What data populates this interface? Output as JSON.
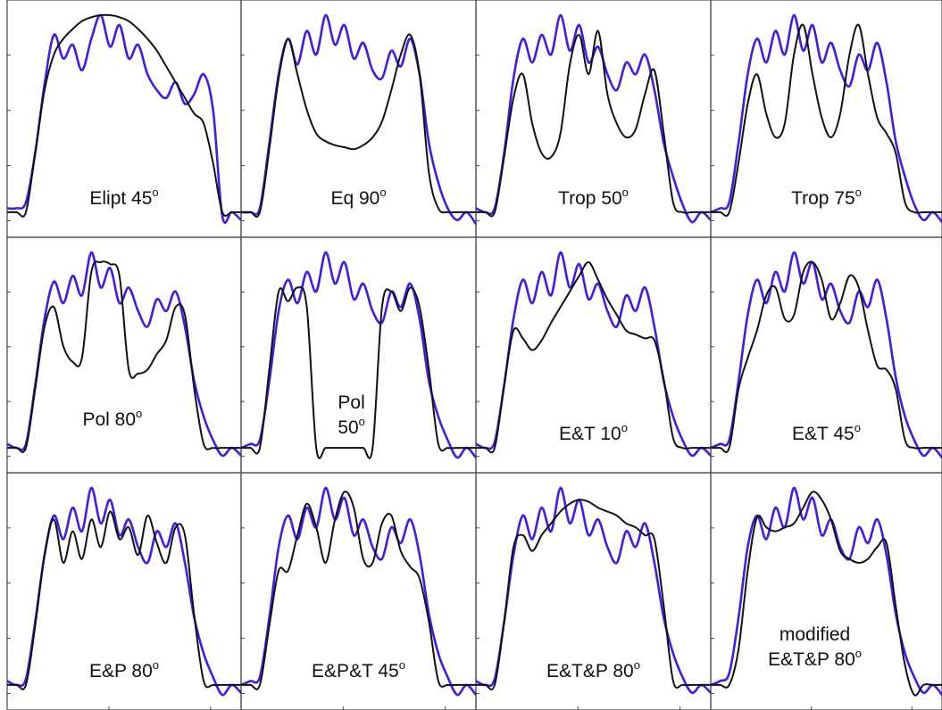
{
  "chart_data": [
    {
      "type": "line",
      "label_lines": [
        "Elipt 45",
        "o"
      ],
      "label_parts": {
        "main": "Elipt 45",
        "sup": "o"
      },
      "series": [
        {
          "color": "#3a1fe6",
          "values": [
            0.02,
            0.02,
            0.05,
            0.3,
            0.65,
            0.9,
            0.78,
            0.85,
            0.72,
            0.88,
            1.0,
            0.84,
            0.95,
            0.78,
            0.85,
            0.7,
            0.62,
            0.58,
            0.66,
            0.55,
            0.6,
            0.7,
            0.52,
            -0.02,
            0.0,
            -0.04
          ]
        },
        {
          "color": "#111111",
          "values": [
            0.0,
            0.0,
            0.0,
            0.3,
            0.62,
            0.8,
            0.88,
            0.93,
            0.97,
            0.99,
            1.0,
            1.0,
            0.99,
            0.97,
            0.93,
            0.88,
            0.82,
            0.74,
            0.66,
            0.58,
            0.5,
            0.45,
            0.25,
            0.0,
            0.0,
            0.0
          ]
        }
      ],
      "ylim": [
        -0.1,
        1.05
      ]
    },
    {
      "type": "line",
      "label_parts": {
        "main": "Eq 90",
        "sup": "o"
      },
      "series": [
        {
          "color": "#3a1fe6",
          "values": [
            0.0,
            0.0,
            0.02,
            0.35,
            0.7,
            0.88,
            0.75,
            0.92,
            0.8,
            1.0,
            0.85,
            0.95,
            0.78,
            0.86,
            0.72,
            0.68,
            0.82,
            0.74,
            0.88,
            0.7,
            0.35,
            0.15,
            0.02,
            -0.04,
            0.0,
            -0.06
          ]
        },
        {
          "color": "#111111",
          "values": [
            0.0,
            0.0,
            0.0,
            0.32,
            0.68,
            0.88,
            0.7,
            0.52,
            0.4,
            0.36,
            0.34,
            0.33,
            0.32,
            0.34,
            0.38,
            0.46,
            0.62,
            0.8,
            0.9,
            0.7,
            0.2,
            0.02,
            0.0,
            0.0,
            0.0,
            0.0
          ]
        }
      ],
      "ylim": [
        -0.1,
        1.05
      ]
    },
    {
      "type": "line",
      "label_parts": {
        "main": "Trop 50",
        "sup": "o"
      },
      "series": [
        {
          "color": "#3a1fe6",
          "values": [
            0.02,
            0.0,
            0.02,
            0.3,
            0.68,
            0.88,
            0.76,
            0.9,
            0.8,
            1.0,
            0.82,
            0.95,
            0.76,
            0.84,
            0.7,
            0.62,
            0.76,
            0.7,
            0.8,
            0.62,
            0.35,
            0.18,
            0.04,
            -0.05,
            0.0,
            -0.04
          ]
        },
        {
          "color": "#111111",
          "values": [
            0.0,
            0.0,
            0.0,
            0.28,
            0.58,
            0.7,
            0.45,
            0.3,
            0.28,
            0.4,
            0.75,
            0.9,
            0.7,
            0.92,
            0.6,
            0.45,
            0.38,
            0.42,
            0.6,
            0.72,
            0.4,
            0.05,
            0.0,
            0.0,
            0.0,
            0.0
          ]
        }
      ],
      "ylim": [
        -0.1,
        1.05
      ]
    },
    {
      "type": "line",
      "label_parts": {
        "main": "Trop 75",
        "sup": "o"
      },
      "series": [
        {
          "color": "#3a1fe6",
          "values": [
            0.0,
            0.02,
            0.05,
            0.35,
            0.7,
            0.88,
            0.76,
            0.92,
            0.8,
            1.0,
            0.82,
            0.95,
            0.76,
            0.86,
            0.72,
            0.64,
            0.8,
            0.72,
            0.86,
            0.66,
            0.36,
            0.18,
            0.04,
            -0.04,
            0.0,
            -0.05
          ]
        },
        {
          "color": "#111111",
          "values": [
            0.0,
            0.0,
            0.0,
            0.25,
            0.55,
            0.7,
            0.5,
            0.38,
            0.45,
            0.8,
            0.95,
            0.7,
            0.48,
            0.38,
            0.5,
            0.8,
            0.95,
            0.7,
            0.48,
            0.4,
            0.3,
            0.05,
            0.0,
            0.0,
            0.0,
            0.0
          ]
        }
      ],
      "ylim": [
        -0.1,
        1.05
      ]
    },
    {
      "type": "line",
      "label_parts": {
        "main": "Pol 80",
        "sup": "o"
      },
      "series": [
        {
          "color": "#3a1fe6",
          "values": [
            0.02,
            0.0,
            0.02,
            0.32,
            0.66,
            0.85,
            0.74,
            0.88,
            0.78,
            1.0,
            0.82,
            0.92,
            0.74,
            0.82,
            0.7,
            0.62,
            0.76,
            0.7,
            0.8,
            0.62,
            0.34,
            0.16,
            0.04,
            -0.04,
            0.0,
            -0.04
          ]
        },
        {
          "color": "#111111",
          "values": [
            0.0,
            0.0,
            0.0,
            0.3,
            0.62,
            0.72,
            0.52,
            0.44,
            0.46,
            0.9,
            0.95,
            0.94,
            0.88,
            0.4,
            0.38,
            0.4,
            0.48,
            0.55,
            0.72,
            0.68,
            0.3,
            0.02,
            0.0,
            0.0,
            0.0,
            0.0
          ]
        }
      ],
      "ylim": [
        -0.1,
        1.05
      ]
    },
    {
      "type": "line",
      "label_parts": {
        "main": "Pol",
        "sup": "o",
        "line2": "50"
      },
      "series": [
        {
          "color": "#3a1fe6",
          "values": [
            0.0,
            0.02,
            0.04,
            0.34,
            0.7,
            0.86,
            0.74,
            0.9,
            0.8,
            1.0,
            0.84,
            0.95,
            0.76,
            0.84,
            0.7,
            0.64,
            0.8,
            0.72,
            0.84,
            0.66,
            0.34,
            0.16,
            0.04,
            -0.05,
            0.0,
            -0.05
          ]
        },
        {
          "color": "#111111",
          "values": [
            0.0,
            0.0,
            0.0,
            0.4,
            0.8,
            0.75,
            0.82,
            0.72,
            0.0,
            0.0,
            0.0,
            0.0,
            0.0,
            0.0,
            0.0,
            0.72,
            0.8,
            0.7,
            0.82,
            0.72,
            0.4,
            0.02,
            0.0,
            0.0,
            0.0,
            0.0
          ]
        }
      ],
      "ylim": [
        -0.1,
        1.05
      ]
    },
    {
      "type": "line",
      "label_parts": {
        "main": "E&T 10",
        "sup": "o"
      },
      "series": [
        {
          "color": "#3a1fe6",
          "values": [
            0.02,
            0.0,
            0.03,
            0.32,
            0.66,
            0.86,
            0.74,
            0.9,
            0.78,
            1.0,
            0.82,
            0.94,
            0.76,
            0.84,
            0.7,
            0.62,
            0.78,
            0.7,
            0.82,
            0.62,
            0.34,
            0.16,
            0.04,
            -0.04,
            0.0,
            -0.04
          ]
        },
        {
          "color": "#111111",
          "values": [
            0.0,
            0.0,
            0.0,
            0.32,
            0.6,
            0.56,
            0.5,
            0.55,
            0.64,
            0.72,
            0.8,
            0.88,
            0.95,
            0.86,
            0.76,
            0.68,
            0.6,
            0.58,
            0.56,
            0.55,
            0.35,
            0.05,
            0.0,
            0.0,
            0.0,
            0.0
          ]
        }
      ],
      "ylim": [
        -0.1,
        1.05
      ]
    },
    {
      "type": "line",
      "label_parts": {
        "main": "E&T 45",
        "sup": "o"
      },
      "series": [
        {
          "color": "#3a1fe6",
          "values": [
            0.0,
            0.02,
            0.04,
            0.34,
            0.68,
            0.86,
            0.74,
            0.9,
            0.8,
            1.0,
            0.84,
            0.95,
            0.76,
            0.84,
            0.7,
            0.64,
            0.8,
            0.72,
            0.86,
            0.66,
            0.36,
            0.16,
            0.04,
            -0.04,
            0.0,
            -0.05
          ]
        },
        {
          "color": "#111111",
          "values": [
            0.0,
            0.0,
            0.0,
            0.3,
            0.46,
            0.6,
            0.78,
            0.82,
            0.66,
            0.68,
            0.9,
            0.95,
            0.86,
            0.66,
            0.74,
            0.88,
            0.82,
            0.6,
            0.42,
            0.4,
            0.3,
            0.04,
            0.0,
            0.0,
            0.0,
            0.0
          ]
        }
      ],
      "ylim": [
        -0.1,
        1.05
      ]
    },
    {
      "type": "line",
      "label_parts": {
        "main": "E&P 80",
        "sup": "o"
      },
      "series": [
        {
          "color": "#3a1fe6",
          "values": [
            0.02,
            0.0,
            0.03,
            0.32,
            0.66,
            0.86,
            0.74,
            0.9,
            0.78,
            1.0,
            0.82,
            0.94,
            0.76,
            0.84,
            0.7,
            0.62,
            0.78,
            0.7,
            0.82,
            0.62,
            0.34,
            0.16,
            0.04,
            -0.05,
            0.0,
            -0.04
          ]
        },
        {
          "color": "#111111",
          "values": [
            0.0,
            0.0,
            0.0,
            0.3,
            0.66,
            0.84,
            0.62,
            0.78,
            0.64,
            0.84,
            0.7,
            0.88,
            0.74,
            0.8,
            0.66,
            0.86,
            0.72,
            0.62,
            0.8,
            0.76,
            0.35,
            0.02,
            0.0,
            0.0,
            0.0,
            0.0
          ]
        }
      ],
      "ylim": [
        -0.1,
        1.05
      ]
    },
    {
      "type": "line",
      "label_parts": {
        "main": "E&P&T 45",
        "sup": "o"
      },
      "series": [
        {
          "color": "#3a1fe6",
          "values": [
            0.0,
            0.02,
            0.04,
            0.34,
            0.7,
            0.86,
            0.74,
            0.9,
            0.8,
            1.0,
            0.84,
            0.95,
            0.76,
            0.84,
            0.7,
            0.64,
            0.8,
            0.72,
            0.84,
            0.66,
            0.36,
            0.16,
            0.04,
            -0.05,
            0.0,
            -0.05
          ]
        },
        {
          "color": "#111111",
          "values": [
            0.0,
            0.0,
            0.0,
            0.3,
            0.58,
            0.58,
            0.76,
            0.92,
            0.8,
            0.62,
            0.84,
            0.98,
            0.9,
            0.64,
            0.62,
            0.82,
            0.86,
            0.68,
            0.6,
            0.54,
            0.32,
            0.02,
            0.0,
            0.0,
            0.0,
            0.0
          ]
        }
      ],
      "ylim": [
        -0.1,
        1.05
      ]
    },
    {
      "type": "line",
      "label_parts": {
        "main": "E&T&P 80",
        "sup": "o"
      },
      "series": [
        {
          "color": "#3a1fe6",
          "values": [
            0.02,
            0.0,
            0.03,
            0.32,
            0.66,
            0.86,
            0.74,
            0.9,
            0.78,
            1.0,
            0.82,
            0.94,
            0.76,
            0.84,
            0.7,
            0.62,
            0.78,
            0.7,
            0.82,
            0.62,
            0.34,
            0.16,
            0.04,
            -0.04,
            0.0,
            -0.04
          ]
        },
        {
          "color": "#111111",
          "values": [
            0.0,
            0.0,
            0.0,
            0.32,
            0.7,
            0.76,
            0.68,
            0.76,
            0.82,
            0.88,
            0.92,
            0.94,
            0.93,
            0.9,
            0.88,
            0.86,
            0.82,
            0.8,
            0.76,
            0.74,
            0.4,
            0.02,
            0.0,
            0.0,
            0.0,
            0.0
          ]
        }
      ],
      "ylim": [
        -0.1,
        1.05
      ]
    },
    {
      "type": "line",
      "label_parts": {
        "main": "modified",
        "line2": "E&T&P 80",
        "sup": "o"
      },
      "series": [
        {
          "color": "#3a1fe6",
          "values": [
            0.0,
            0.02,
            0.06,
            0.34,
            0.7,
            0.86,
            0.74,
            0.9,
            0.8,
            1.0,
            0.84,
            0.95,
            0.76,
            0.84,
            0.7,
            0.64,
            0.8,
            0.72,
            0.84,
            0.66,
            0.36,
            0.16,
            0.04,
            -0.04,
            0.0,
            -0.05
          ]
        },
        {
          "color": "#111111",
          "values": [
            0.0,
            0.0,
            0.0,
            0.18,
            0.58,
            0.85,
            0.8,
            0.78,
            0.8,
            0.82,
            0.9,
            0.98,
            0.94,
            0.84,
            0.68,
            0.64,
            0.62,
            0.64,
            0.7,
            0.72,
            0.4,
            0.1,
            -0.05,
            0.0,
            0.0,
            0.0
          ]
        }
      ],
      "ylim": [
        -0.1,
        1.05
      ]
    }
  ]
}
